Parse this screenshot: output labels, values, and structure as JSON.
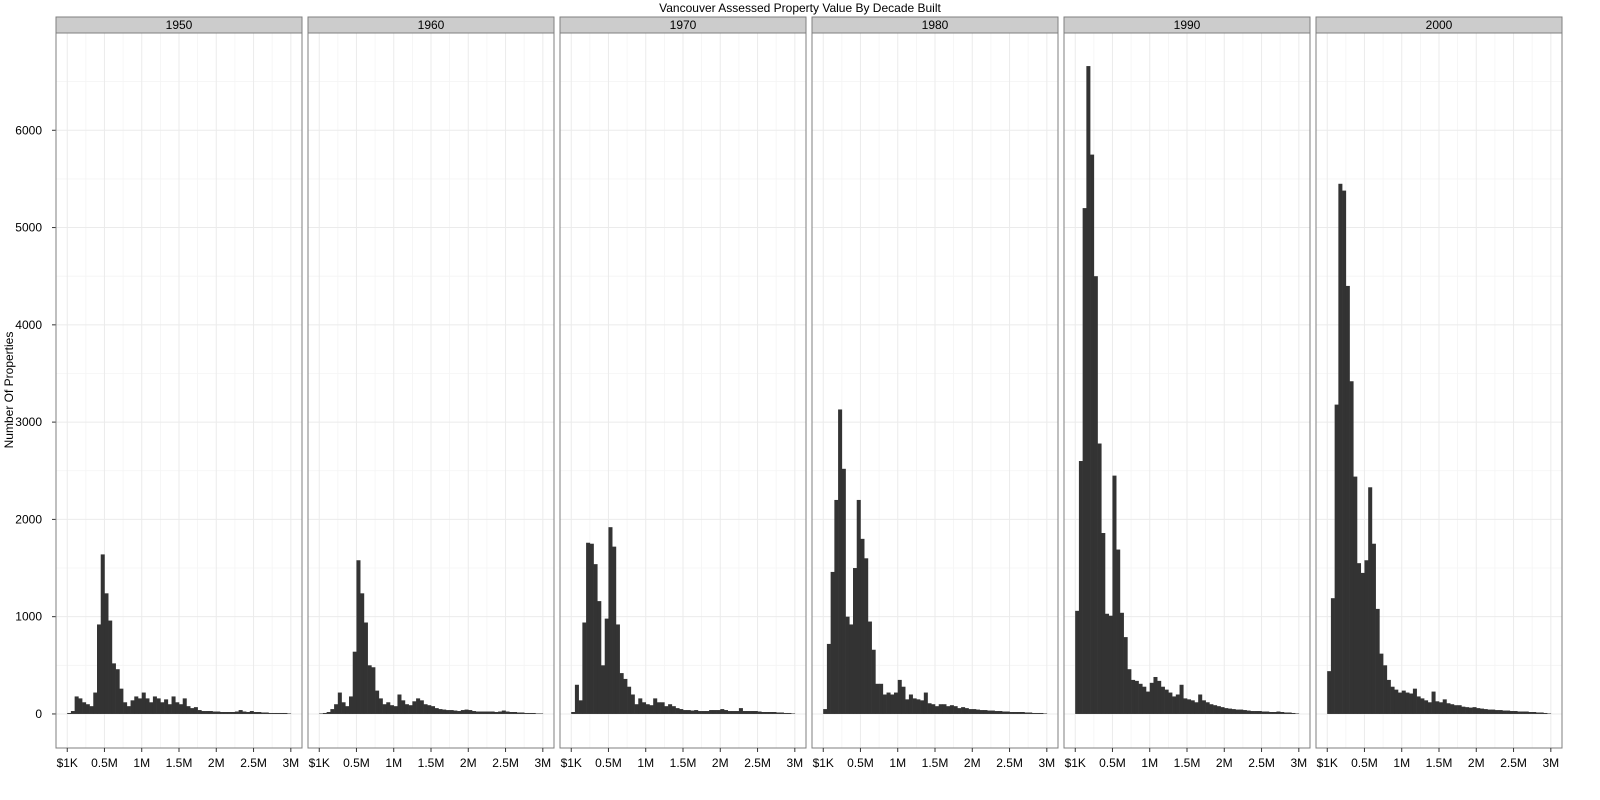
{
  "chart_data": {
    "type": "bar",
    "title": "Vancouver Assessed Property Value By Decade Built",
    "xlabel": "",
    "ylabel": "Number Of Properties",
    "ylim": [
      -350,
      7000
    ],
    "y_ticks": [
      0,
      1000,
      2000,
      3000,
      4000,
      5000,
      6000
    ],
    "xlim": [
      -150000,
      3150000
    ],
    "x_ticks": [
      {
        "value": 1000,
        "label": "$1K"
      },
      {
        "value": 500000,
        "label": "0.5M"
      },
      {
        "value": 1000000,
        "label": "1M"
      },
      {
        "value": 1500000,
        "label": "1.5M"
      },
      {
        "value": 2000000,
        "label": "2M"
      },
      {
        "value": 2500000,
        "label": "2.5M"
      },
      {
        "value": 3000000,
        "label": "3M"
      }
    ],
    "bin_width": 50000,
    "bin_start": 0,
    "grid": true,
    "panels": [
      {
        "name": "1950",
        "values": [
          10,
          30,
          180,
          160,
          120,
          100,
          80,
          220,
          920,
          1640,
          1240,
          960,
          520,
          460,
          260,
          120,
          80,
          140,
          180,
          160,
          220,
          160,
          120,
          180,
          160,
          120,
          150,
          100,
          180,
          120,
          100,
          160,
          80,
          60,
          70,
          40,
          30,
          30,
          30,
          25,
          25,
          20,
          20,
          20,
          20,
          25,
          40,
          25,
          20,
          30,
          20,
          20,
          15,
          15,
          10,
          10,
          10,
          10,
          10,
          5
        ]
      },
      {
        "name": "1960",
        "values": [
          5,
          10,
          20,
          50,
          100,
          220,
          120,
          80,
          180,
          640,
          1580,
          1240,
          940,
          500,
          480,
          240,
          160,
          100,
          120,
          90,
          80,
          200,
          140,
          100,
          90,
          130,
          160,
          140,
          100,
          90,
          80,
          60,
          50,
          45,
          40,
          40,
          35,
          30,
          40,
          45,
          40,
          30,
          25,
          25,
          25,
          25,
          25,
          20,
          25,
          35,
          25,
          20,
          20,
          15,
          15,
          10,
          10,
          10,
          5,
          5
        ]
      },
      {
        "name": "1970",
        "values": [
          20,
          300,
          140,
          940,
          1760,
          1750,
          1540,
          1160,
          500,
          980,
          1920,
          1720,
          920,
          420,
          360,
          280,
          200,
          100,
          160,
          120,
          100,
          90,
          160,
          120,
          120,
          80,
          100,
          80,
          60,
          50,
          40,
          40,
          35,
          40,
          30,
          30,
          30,
          40,
          40,
          40,
          50,
          40,
          30,
          30,
          30,
          60,
          30,
          30,
          30,
          30,
          25,
          20,
          20,
          20,
          20,
          15,
          15,
          10,
          10,
          5
        ]
      },
      {
        "name": "1980",
        "values": [
          50,
          720,
          1460,
          2200,
          3130,
          2520,
          1000,
          920,
          1500,
          2200,
          1800,
          1600,
          950,
          660,
          310,
          310,
          200,
          220,
          200,
          220,
          350,
          280,
          150,
          200,
          160,
          150,
          140,
          220,
          110,
          100,
          80,
          100,
          100,
          80,
          90,
          80,
          60,
          70,
          60,
          50,
          50,
          45,
          40,
          40,
          35,
          35,
          30,
          30,
          25,
          25,
          20,
          20,
          20,
          20,
          15,
          15,
          10,
          10,
          10,
          5
        ]
      },
      {
        "name": "1990",
        "values": [
          1060,
          2600,
          5200,
          6660,
          5750,
          4500,
          2780,
          1860,
          1030,
          1010,
          2450,
          1690,
          1040,
          790,
          460,
          350,
          340,
          310,
          280,
          230,
          320,
          380,
          340,
          280,
          250,
          220,
          180,
          200,
          300,
          160,
          150,
          140,
          120,
          200,
          140,
          120,
          100,
          90,
          80,
          70,
          60,
          55,
          50,
          45,
          45,
          40,
          35,
          30,
          30,
          30,
          25,
          25,
          20,
          20,
          25,
          20,
          15,
          15,
          10,
          5
        ]
      },
      {
        "name": "2000",
        "values": [
          440,
          1190,
          3180,
          5450,
          5380,
          4400,
          3420,
          2440,
          1550,
          1450,
          1580,
          2330,
          1750,
          1080,
          620,
          500,
          350,
          280,
          250,
          220,
          240,
          220,
          210,
          260,
          180,
          160,
          140,
          120,
          230,
          130,
          120,
          150,
          110,
          100,
          90,
          90,
          75,
          70,
          65,
          70,
          60,
          55,
          50,
          45,
          45,
          40,
          40,
          35,
          35,
          30,
          30,
          25,
          25,
          25,
          20,
          20,
          15,
          15,
          10,
          5
        ]
      }
    ]
  }
}
